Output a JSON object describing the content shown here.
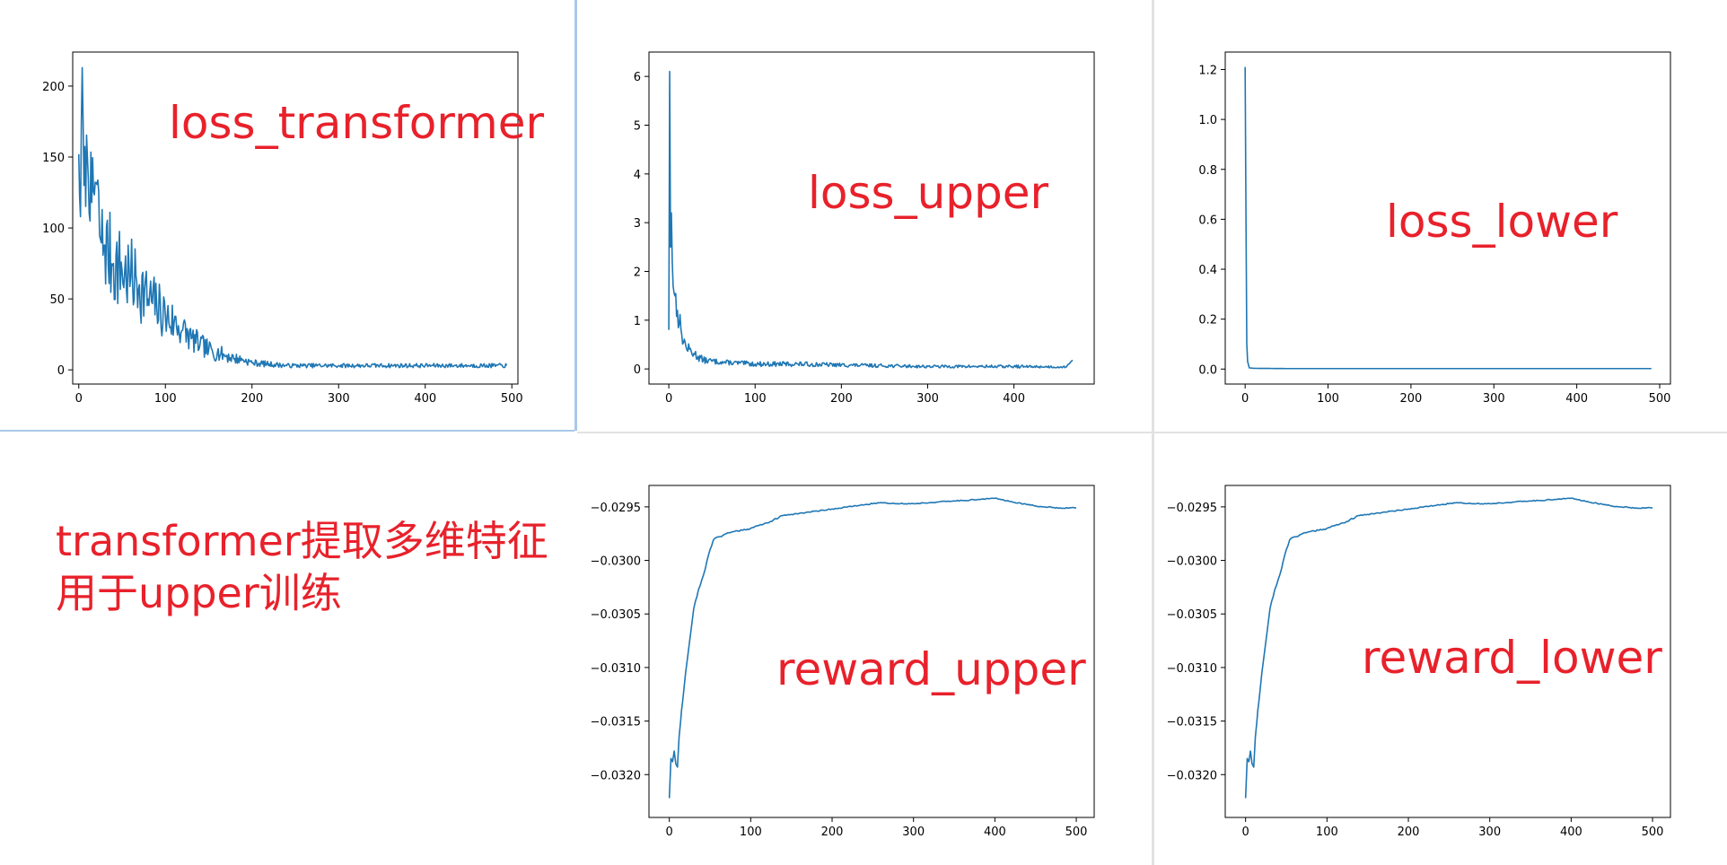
{
  "colors": {
    "line": "#1f77b4",
    "annotation": "#e8212b",
    "axis": "#000000"
  },
  "panels": {
    "p1": {
      "label": "loss_transformer"
    },
    "p2": {
      "label": "loss_upper"
    },
    "p3": {
      "label": "loss_lower"
    },
    "p4": {
      "label": "reward_upper"
    },
    "p5": {
      "label": "reward_lower"
    }
  },
  "caption": {
    "line1": "transformer提取多维特征",
    "line2": "用于upper训练"
  },
  "chart_data": [
    {
      "id": "p1",
      "type": "line",
      "title": "",
      "xlabel": "",
      "ylabel": "",
      "xlim": [
        -7,
        507
      ],
      "ylim": [
        -10,
        224
      ],
      "xticks": [
        0,
        100,
        200,
        300,
        400,
        500
      ],
      "yticks": [
        0,
        50,
        100,
        150,
        200
      ],
      "tick_decimals": 0,
      "series": [
        {
          "x": [
            0,
            2,
            4,
            6,
            10,
            15,
            20,
            25,
            30,
            40,
            50,
            60,
            70,
            80,
            90,
            100,
            110,
            120,
            130,
            140,
            150,
            160,
            170,
            180,
            190,
            200,
            220,
            240,
            260,
            300,
            350,
            400,
            450,
            494
          ],
          "y": [
            152,
            108,
            213,
            130,
            150,
            118,
            132,
            92,
            88,
            75,
            70,
            65,
            60,
            50,
            45,
            38,
            33,
            28,
            22,
            18,
            14,
            12,
            10,
            8,
            7,
            5,
            4,
            3,
            3,
            3,
            3,
            3,
            3,
            3
          ],
          "noise_amp": [
            8,
            25,
            10,
            25,
            30,
            30,
            32,
            32,
            32,
            32,
            30,
            28,
            26,
            22,
            20,
            18,
            15,
            12,
            10,
            8,
            7,
            6,
            5,
            4,
            3,
            2.5,
            2,
            1.5,
            1.5,
            1.5,
            1.5,
            1.5,
            1.5,
            1.5
          ],
          "step": 1,
          "seed": 7
        }
      ]
    },
    {
      "id": "p2",
      "type": "line",
      "title": "",
      "xlabel": "",
      "ylabel": "",
      "xlim": [
        -23,
        493
      ],
      "ylim": [
        -0.31,
        6.5
      ],
      "xticks": [
        0,
        100,
        200,
        300,
        400
      ],
      "yticks": [
        0,
        1,
        2,
        3,
        4,
        5,
        6
      ],
      "tick_decimals": 0,
      "series": [
        {
          "x": [
            0,
            1,
            2,
            3,
            5,
            7,
            10,
            15,
            20,
            30,
            40,
            60,
            100,
            150,
            200,
            300,
            400,
            460,
            468
          ],
          "y": [
            0.8,
            6.1,
            2.5,
            3.2,
            1.7,
            1.5,
            1.2,
            0.7,
            0.45,
            0.3,
            0.18,
            0.14,
            0.1,
            0.1,
            0.08,
            0.05,
            0.05,
            0.04,
            0.18
          ],
          "noise_amp": [
            0,
            0,
            0.6,
            0.6,
            0.4,
            0.35,
            0.3,
            0.2,
            0.12,
            0.1,
            0.07,
            0.05,
            0.05,
            0.05,
            0.04,
            0.03,
            0.03,
            0.02,
            0
          ],
          "step": 1,
          "seed": 13
        }
      ]
    },
    {
      "id": "p3",
      "type": "line",
      "title": "",
      "xlabel": "",
      "ylabel": "",
      "xlim": [
        -24,
        513
      ],
      "ylim": [
        -0.06,
        1.27
      ],
      "xticks": [
        0,
        100,
        200,
        300,
        400,
        500
      ],
      "yticks": [
        0,
        0.2,
        0.4,
        0.6,
        0.8,
        1.0,
        1.2
      ],
      "tick_decimals": 1,
      "series": [
        {
          "x": [
            0,
            1,
            2,
            3,
            5,
            10,
            50,
            100,
            200,
            300,
            400,
            490
          ],
          "y": [
            1.21,
            0.62,
            0.1,
            0.03,
            0.005,
            0.003,
            0.002,
            0.002,
            0.002,
            0.002,
            0.002,
            0.002
          ],
          "noise_amp": [
            0,
            0,
            0,
            0,
            0,
            0,
            0,
            0,
            0,
            0,
            0,
            0
          ],
          "step": 1,
          "seed": 3
        }
      ]
    },
    {
      "id": "p4",
      "type": "line",
      "title": "",
      "xlabel": "",
      "ylabel": "",
      "xlim": [
        -25,
        522
      ],
      "ylim": [
        -0.0324,
        -0.0293
      ],
      "xticks": [
        0,
        100,
        200,
        300,
        400,
        500
      ],
      "yticks": [
        -0.032,
        -0.0315,
        -0.031,
        -0.0305,
        -0.03,
        -0.0295
      ],
      "tick_decimals": 4,
      "series": [
        {
          "x": [
            0,
            2,
            4,
            6,
            8,
            10,
            12,
            15,
            20,
            25,
            30,
            35,
            40,
            45,
            50,
            55,
            60,
            70,
            80,
            100,
            120,
            140,
            160,
            200,
            240,
            260,
            280,
            300,
            340,
            380,
            400,
            420,
            440,
            460,
            480,
            500
          ],
          "y": [
            -0.03222,
            -0.03185,
            -0.03188,
            -0.03178,
            -0.0319,
            -0.03193,
            -0.03165,
            -0.0314,
            -0.03105,
            -0.03075,
            -0.03045,
            -0.0303,
            -0.03018,
            -0.03005,
            -0.0299,
            -0.0298,
            -0.02978,
            -0.02975,
            -0.02973,
            -0.0297,
            -0.02965,
            -0.02958,
            -0.02956,
            -0.02952,
            -0.02948,
            -0.02946,
            -0.02947,
            -0.02947,
            -0.02945,
            -0.02943,
            -0.02942,
            -0.02945,
            -0.02948,
            -0.0295,
            -0.02951,
            -0.02951
          ],
          "noise_amp": [
            3e-05,
            3e-05,
            3e-05,
            3e-05,
            2e-05,
            2e-05,
            2e-05,
            2e-05,
            1e-05,
            1e-05,
            1e-05,
            1e-05,
            1e-05,
            1e-05,
            1e-05,
            1e-05,
            1e-05,
            1e-05,
            1e-05,
            8e-06,
            8e-06,
            6e-06,
            5e-06,
            5e-06,
            5e-06,
            5e-06,
            5e-06,
            5e-06,
            5e-06,
            5e-06,
            5e-06,
            5e-06,
            5e-06,
            5e-06,
            5e-06,
            5e-06
          ],
          "step": 2,
          "seed": 21
        }
      ]
    },
    {
      "id": "p5",
      "type": "line",
      "title": "",
      "xlabel": "",
      "ylabel": "",
      "xlim": [
        -25,
        522
      ],
      "ylim": [
        -0.0324,
        -0.0293
      ],
      "xticks": [
        0,
        100,
        200,
        300,
        400,
        500
      ],
      "yticks": [
        -0.032,
        -0.0315,
        -0.031,
        -0.0305,
        -0.03,
        -0.0295
      ],
      "tick_decimals": 4,
      "series": [
        {
          "x": [
            0,
            2,
            4,
            6,
            8,
            10,
            12,
            15,
            20,
            25,
            30,
            35,
            40,
            45,
            50,
            55,
            60,
            70,
            80,
            100,
            120,
            140,
            160,
            200,
            240,
            260,
            280,
            300,
            340,
            380,
            400,
            420,
            440,
            460,
            480,
            500
          ],
          "y": [
            -0.03222,
            -0.03185,
            -0.03188,
            -0.03178,
            -0.0319,
            -0.03193,
            -0.03165,
            -0.0314,
            -0.03105,
            -0.03075,
            -0.03045,
            -0.0303,
            -0.03018,
            -0.03005,
            -0.0299,
            -0.0298,
            -0.02978,
            -0.02975,
            -0.02973,
            -0.0297,
            -0.02965,
            -0.02958,
            -0.02956,
            -0.02952,
            -0.02948,
            -0.02946,
            -0.02947,
            -0.02947,
            -0.02945,
            -0.02943,
            -0.02942,
            -0.02945,
            -0.02948,
            -0.0295,
            -0.02951,
            -0.02951
          ],
          "noise_amp": [
            3e-05,
            3e-05,
            3e-05,
            3e-05,
            2e-05,
            2e-05,
            2e-05,
            2e-05,
            1e-05,
            1e-05,
            1e-05,
            1e-05,
            1e-05,
            1e-05,
            1e-05,
            1e-05,
            1e-05,
            1e-05,
            1e-05,
            8e-06,
            8e-06,
            6e-06,
            5e-06,
            5e-06,
            5e-06,
            5e-06,
            5e-06,
            5e-06,
            5e-06,
            5e-06,
            5e-06,
            5e-06,
            5e-06,
            5e-06,
            5e-06,
            5e-06
          ],
          "step": 2,
          "seed": 21
        }
      ]
    }
  ]
}
